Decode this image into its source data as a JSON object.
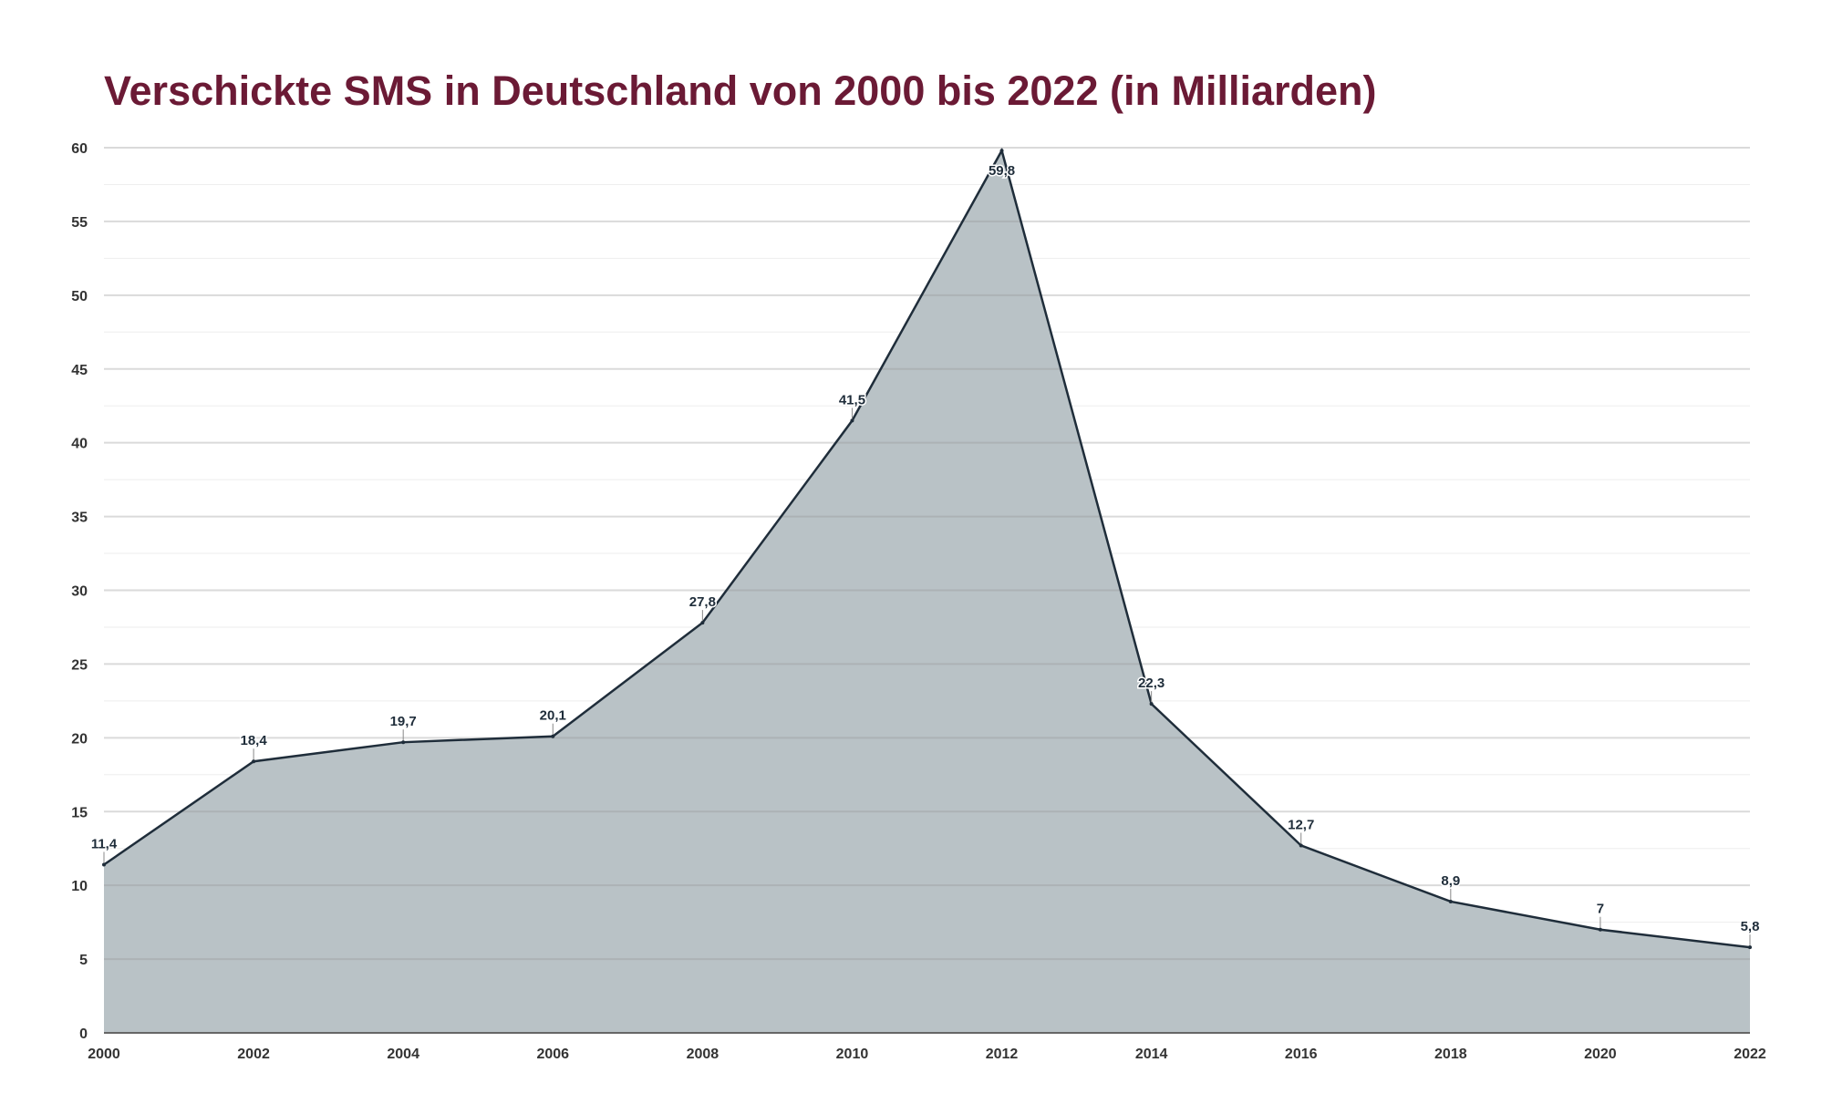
{
  "chart_data": {
    "type": "area",
    "title": "Verschickte SMS in Deutschland von 2000 bis 2022 (in Milliarden)",
    "xlabel": "",
    "ylabel": "",
    "x": [
      2000,
      2002,
      2004,
      2006,
      2008,
      2010,
      2012,
      2014,
      2016,
      2018,
      2020,
      2022
    ],
    "values": [
      11.4,
      18.4,
      19.7,
      20.1,
      27.8,
      41.5,
      59.8,
      22.3,
      12.7,
      8.9,
      7,
      5.8
    ],
    "data_labels": [
      "11,4",
      "18,4",
      "19,7",
      "20,1",
      "27,8",
      "41,5",
      "59,8",
      "22,3",
      "12,7",
      "8,9",
      "7",
      "5,8"
    ],
    "x_ticks": [
      "2000",
      "2002",
      "2004",
      "2006",
      "2008",
      "2010",
      "2012",
      "2014",
      "2016",
      "2018",
      "2020",
      "2022"
    ],
    "y_ticks": [
      "0",
      "5",
      "10",
      "15",
      "20",
      "25",
      "30",
      "35",
      "40",
      "45",
      "50",
      "55",
      "60"
    ],
    "ylim": [
      0,
      60
    ],
    "xlim": [
      2000,
      2022
    ],
    "grid": true,
    "legend": "none",
    "colors": {
      "title": "#6b1a35",
      "fill": "#b9c2c6",
      "line": "#1f2d3a",
      "grid": "#dddddd"
    }
  }
}
